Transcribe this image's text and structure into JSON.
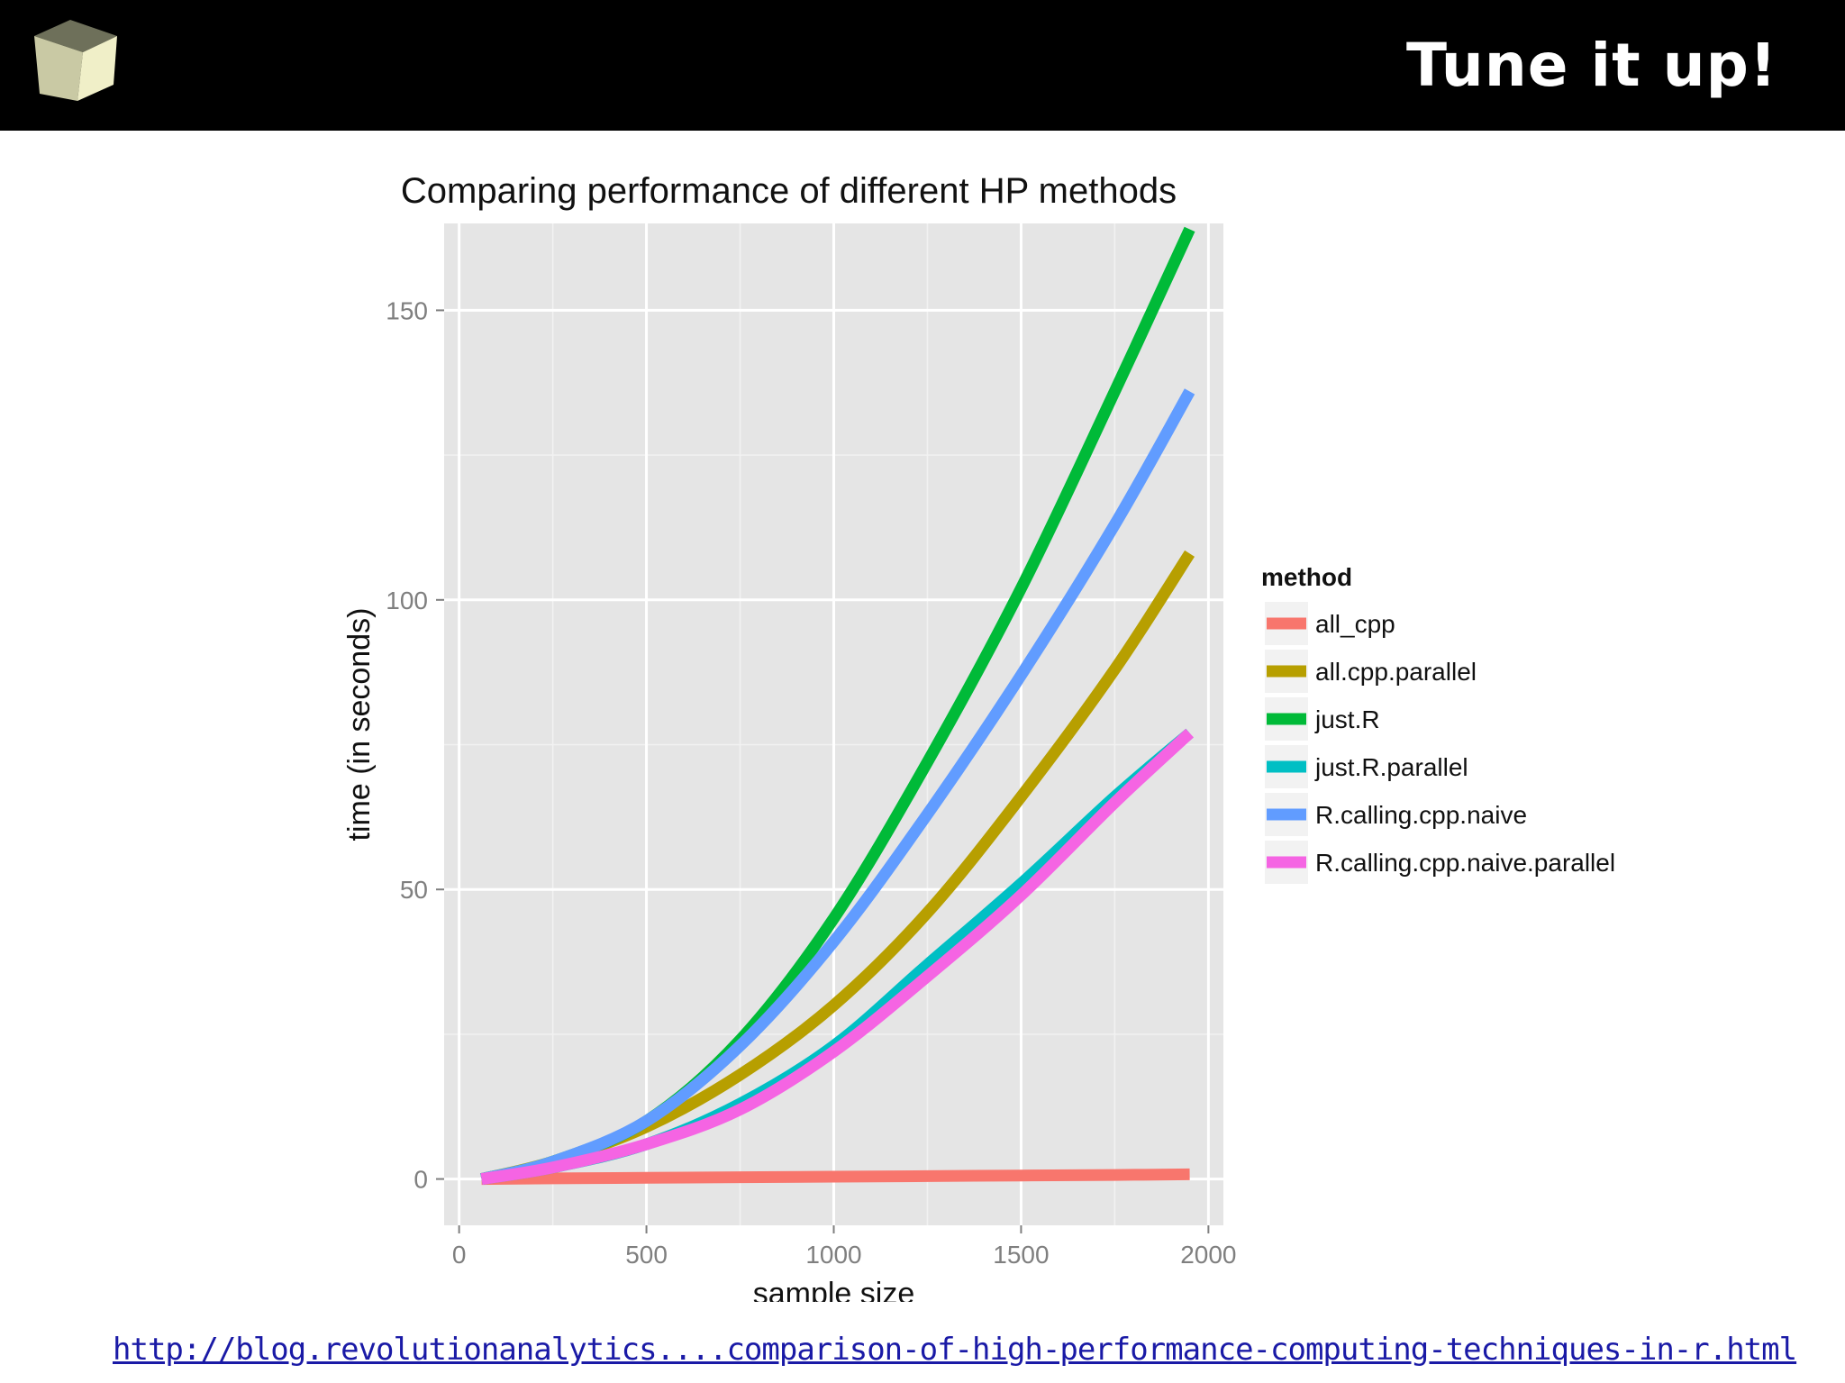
{
  "slide": {
    "title": "Tune it up!",
    "source_link": "http://blog.revolutionanalytics....comparison-of-high-performance-computing-techniques-in-r.html",
    "logo_icon": "cube-icon"
  },
  "chart_data": {
    "type": "line",
    "title": "Comparing performance of different HP methods",
    "xlabel": "sample size",
    "ylabel": "time (in seconds)",
    "xlim": [
      -40,
      2040
    ],
    "ylim": [
      -8,
      165
    ],
    "xticks": [
      0,
      500,
      1000,
      1500,
      2000
    ],
    "yticks": [
      0,
      50,
      100,
      150
    ],
    "grid": true,
    "panel_color": "#e5e5e5",
    "legend": {
      "title": "method",
      "position": "right"
    },
    "x": [
      60,
      250,
      500,
      750,
      1000,
      1250,
      1500,
      1750,
      1950
    ],
    "series": [
      {
        "name": "all_cpp",
        "color": "#f8766d",
        "values": [
          0,
          0.1,
          0.2,
          0.3,
          0.4,
          0.5,
          0.6,
          0.7,
          0.8
        ]
      },
      {
        "name": "all.cpp.parallel",
        "color": "#b79f00",
        "values": [
          0,
          3,
          9,
          18,
          30,
          46,
          66,
          88,
          108
        ]
      },
      {
        "name": "just.R",
        "color": "#00ba38",
        "values": [
          0,
          3,
          10,
          24,
          45,
          72,
          102,
          136,
          164
        ]
      },
      {
        "name": "just.R.parallel",
        "color": "#00bfc4",
        "values": [
          0,
          2,
          6,
          13,
          23,
          37,
          51,
          66,
          77
        ]
      },
      {
        "name": "R.calling.cpp.naive",
        "color": "#619cff",
        "values": [
          0,
          3,
          10,
          23,
          41,
          63,
          87,
          113,
          136
        ]
      },
      {
        "name": "R.calling.cpp.naive.parallel",
        "color": "#f564e3",
        "values": [
          0,
          2,
          6,
          12,
          22,
          35,
          49,
          65,
          77
        ]
      }
    ]
  }
}
